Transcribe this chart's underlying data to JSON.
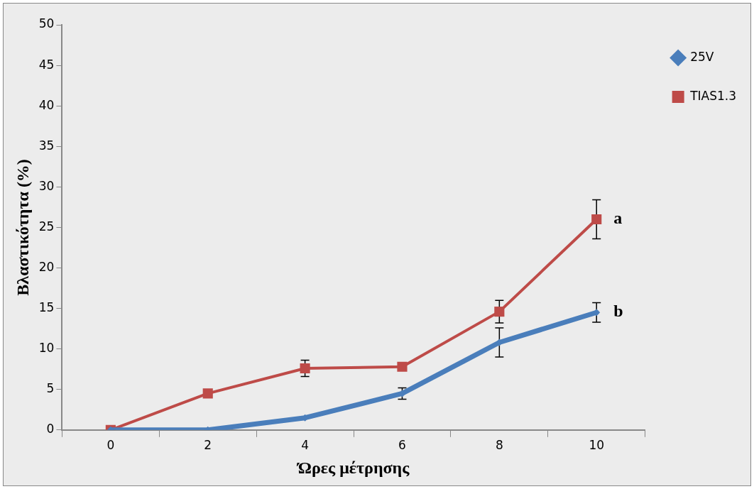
{
  "chart_data": {
    "type": "line",
    "xlabel": "Ώρες μέτρησης",
    "ylabel": "Βλαστικότητα (%)",
    "categories": [
      "0",
      "2",
      "4",
      "6",
      "8",
      "10"
    ],
    "series": [
      {
        "name": "25V",
        "color": "#4a7ebb",
        "marker": "diamond",
        "values": [
          0,
          0,
          1.5,
          4.5,
          10.8,
          14.5
        ],
        "errors": [
          null,
          null,
          null,
          0.7,
          1.8,
          1.2
        ]
      },
      {
        "name": "TIAS1.3",
        "color": "#be4b48",
        "marker": "square",
        "values": [
          0,
          4.5,
          7.6,
          7.8,
          14.6,
          26
        ],
        "errors": [
          null,
          null,
          1,
          null,
          1.4,
          2.4
        ]
      }
    ],
    "ylim": [
      0,
      50
    ],
    "yticks": [
      0,
      5,
      10,
      15,
      20,
      25,
      30,
      35,
      40,
      45,
      50
    ],
    "grid": false,
    "legend": "top right",
    "annotations": [
      {
        "text": "a",
        "x": "10",
        "y": 26
      },
      {
        "text": "b",
        "x": "10",
        "y": 14.5
      }
    ]
  }
}
